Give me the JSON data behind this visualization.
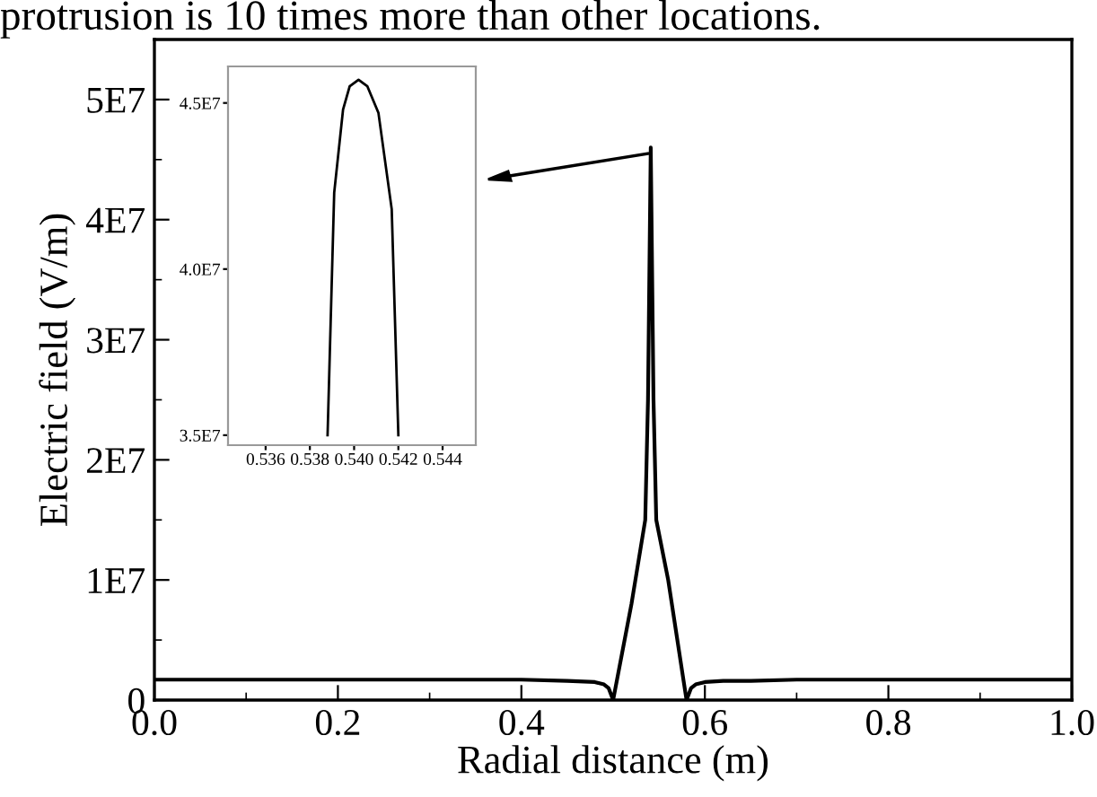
{
  "chart_data": [
    {
      "type": "line",
      "xlabel": "Radial distance (m)",
      "ylabel": "Electric field (V/m)",
      "annotations": [
        "protrusion is 10 times more than other locations."
      ],
      "x": [
        0,
        0.1,
        0.2,
        0.3,
        0.4,
        0.45,
        0.48,
        0.49,
        0.495,
        0.5,
        0.52,
        0.535,
        0.538,
        0.541,
        0.544,
        0.547,
        0.56,
        0.58,
        0.585,
        0.59,
        0.6,
        0.62,
        0.65,
        0.7,
        0.8,
        0.9,
        1.0
      ],
      "series": [
        {
          "color": "#000000",
          "values": [
            1700000,
            1700000,
            1700000,
            1700000,
            1700000,
            1600000,
            1500000,
            1300000,
            1000000,
            0,
            8000000,
            15000000,
            25000000,
            46000000,
            25000000,
            15000000,
            10000000,
            0,
            1000000,
            1300000,
            1500000,
            1600000,
            1600000,
            1700000,
            1700000,
            1700000,
            1700000
          ]
        }
      ],
      "xlim": [
        0,
        1
      ],
      "ylim": [
        0,
        55000000
      ],
      "xticks": [
        {
          "value": 0,
          "label": "0.0"
        },
        0.2,
        0.4,
        0.6,
        0.8,
        {
          "value": 1,
          "label": "1.0"
        }
      ],
      "yticks": [
        0,
        {
          "value": 10000000,
          "label": "1E7"
        },
        {
          "value": 20000000,
          "label": "2E7"
        },
        {
          "value": 30000000,
          "label": "3E7"
        },
        {
          "value": 40000000,
          "label": "4E7"
        },
        {
          "value": 50000000,
          "label": "5E7"
        }
      ],
      "grid": false,
      "line_style": "solid"
    },
    {
      "type": "line",
      "x": [
        0.5388,
        0.5391,
        0.5395,
        0.5398,
        0.5402,
        0.5406,
        0.5411,
        0.5417,
        0.542
      ],
      "series": [
        {
          "color": "#000000",
          "values": [
            35000000,
            42300000,
            44800000,
            45500000,
            45700000,
            45500000,
            44700000,
            41800000,
            35000000
          ]
        }
      ],
      "xlim": [
        0.5343,
        0.5455
      ],
      "ylim": [
        34700000,
        46100000
      ],
      "xticks": [
        0.536,
        0.538,
        {
          "value": 0.54,
          "label": "0.540"
        },
        0.542,
        0.544
      ],
      "yticks": [
        {
          "value": 35000000,
          "label": "3.5E7"
        },
        {
          "value": 40000000,
          "label": "4.0E7"
        },
        {
          "value": 45000000,
          "label": "4.5E7"
        }
      ],
      "grid": false,
      "line_style": "solid"
    }
  ]
}
